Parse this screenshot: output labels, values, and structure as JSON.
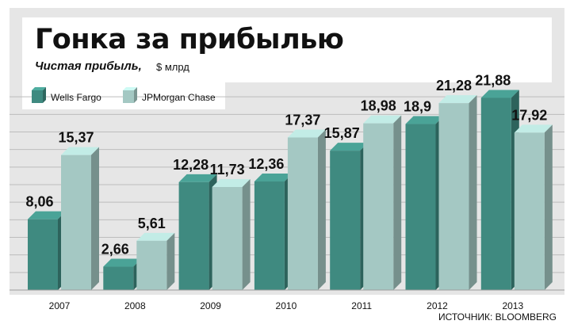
{
  "chart_data": {
    "type": "bar",
    "title": "Гонка за прибылью",
    "subtitle": "Чистая прибыль,",
    "unit": "$ млрд",
    "source": "ИСТОЧНИК: BLOOMBERG",
    "categories": [
      "2007",
      "2008",
      "2009",
      "2010",
      "2011",
      "2012",
      "2013"
    ],
    "series": [
      {
        "name": "Wells Fargo",
        "color": "#3f8a80",
        "values": [
          8.06,
          2.66,
          12.28,
          12.36,
          15.87,
          18.9,
          21.88
        ],
        "labels": [
          "8,06",
          "2,66",
          "12,28",
          "12,36",
          "15,87",
          "18,9",
          "21,88"
        ]
      },
      {
        "name": "JPMorgan Chase",
        "color": "#a4c8c3",
        "values": [
          15.37,
          5.61,
          11.73,
          17.37,
          18.98,
          21.28,
          17.92
        ],
        "labels": [
          "15,37",
          "5,61",
          "11,73",
          "17,37",
          "18,98",
          "21,28",
          "17,92"
        ]
      }
    ],
    "ylim": [
      0,
      24
    ],
    "grid": true,
    "legend": "top-left"
  }
}
